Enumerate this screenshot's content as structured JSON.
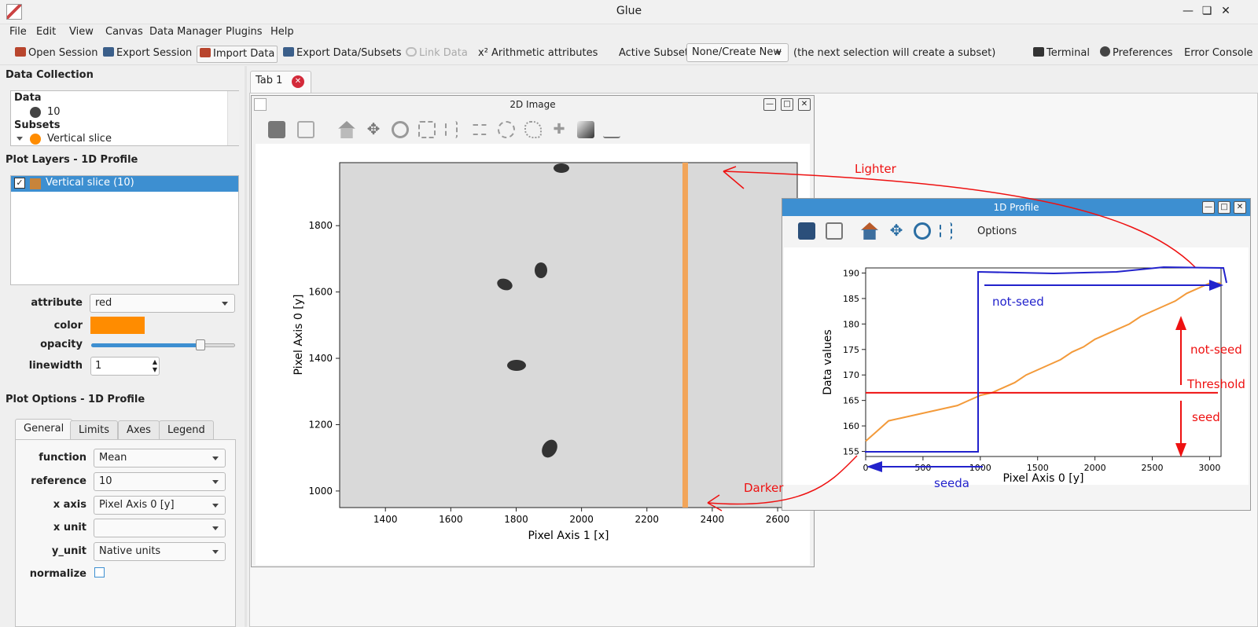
{
  "window": {
    "title": "Glue"
  },
  "menu": [
    "File",
    "Edit",
    "View",
    "Canvas",
    "Data Manager",
    "Plugins",
    "Help"
  ],
  "toolbar": {
    "open_session": "Open Session",
    "export_session": "Export Session",
    "import_data": "Import Data",
    "export_data": "Export Data/Subsets",
    "link_data": "Link Data",
    "arithmetic": "x² Arithmetic attributes",
    "active_subset_label": "Active Subset:",
    "active_subset_value": "None/Create New",
    "hint": "(the next selection will create a subset)",
    "terminal": "Terminal",
    "preferences": "Preferences",
    "error_console": "Error Console"
  },
  "data_collection": {
    "title": "Data Collection",
    "data_header": "Data",
    "data_item": "10",
    "subsets_header": "Subsets",
    "subset_item": "Vertical slice"
  },
  "plot_layers": {
    "title": "Plot Layers - 1D Profile",
    "layer": "Vertical slice (10)",
    "attribute_label": "attribute",
    "attribute_value": "red",
    "color_label": "color",
    "color_value": "#ff8c00",
    "opacity_label": "opacity",
    "opacity": 0.76,
    "linewidth_label": "linewidth",
    "linewidth_value": "1"
  },
  "plot_options": {
    "title": "Plot Options - 1D Profile",
    "tabs": [
      "General",
      "Limits",
      "Axes",
      "Legend"
    ],
    "function_label": "function",
    "function_value": "Mean",
    "reference_label": "reference",
    "reference_value": "10",
    "xaxis_label": "x axis",
    "xaxis_value": "Pixel Axis 0 [y]",
    "xunit_label": "x unit",
    "xunit_value": "",
    "yunit_label": "y_unit",
    "yunit_value": "Native units",
    "normalize_label": "normalize"
  },
  "tabs": {
    "tab1": "Tab 1"
  },
  "image_viewer": {
    "title": "2D Image",
    "xlabel": "Pixel Axis 1 [x]",
    "ylabel": "Pixel Axis 0 [y]",
    "xticks": [
      "1400",
      "1600",
      "1800",
      "2000",
      "2200",
      "2400",
      "2600"
    ],
    "yticks": [
      "1000",
      "1200",
      "1400",
      "1600",
      "1800"
    ]
  },
  "profile_viewer": {
    "title": "1D Profile",
    "options": "Options"
  },
  "chart_data": {
    "type": "line",
    "xlabel": "Pixel Axis 0 [y]",
    "ylabel": "Data values",
    "xlim": [
      0,
      3100
    ],
    "ylim": [
      154,
      191
    ],
    "xticks": [
      "0",
      "500",
      "1000",
      "1500",
      "2000",
      "2500",
      "3000"
    ],
    "yticks": [
      "155",
      "160",
      "165",
      "170",
      "175",
      "180",
      "185",
      "190"
    ],
    "threshold": 166.5,
    "series": [
      {
        "x": [
          0,
          100,
          200,
          300,
          400,
          500,
          600,
          700,
          800,
          900,
          1000,
          1100,
          1200,
          1300,
          1400,
          1500,
          1600,
          1700,
          1800,
          1900,
          2000,
          2100,
          2200,
          2300,
          2400,
          2500,
          2600,
          2700,
          2800,
          2900,
          3000,
          3100
        ],
        "y": [
          157,
          159,
          161,
          161.5,
          162,
          162.5,
          163,
          163.5,
          164,
          165,
          166,
          166.5,
          167.5,
          168.5,
          170,
          171,
          172,
          173,
          174.5,
          175.5,
          177,
          178,
          179,
          180,
          181.5,
          182.5,
          183.5,
          184.5,
          186,
          187,
          188,
          188
        ]
      }
    ]
  },
  "annotations": {
    "lighter": "Lighter",
    "darker": "Darker",
    "not_seed_top": "not-seed",
    "not_seed_right": "not-seed",
    "threshold": "Threshold",
    "seed": "seed",
    "seeda": "seeda"
  }
}
